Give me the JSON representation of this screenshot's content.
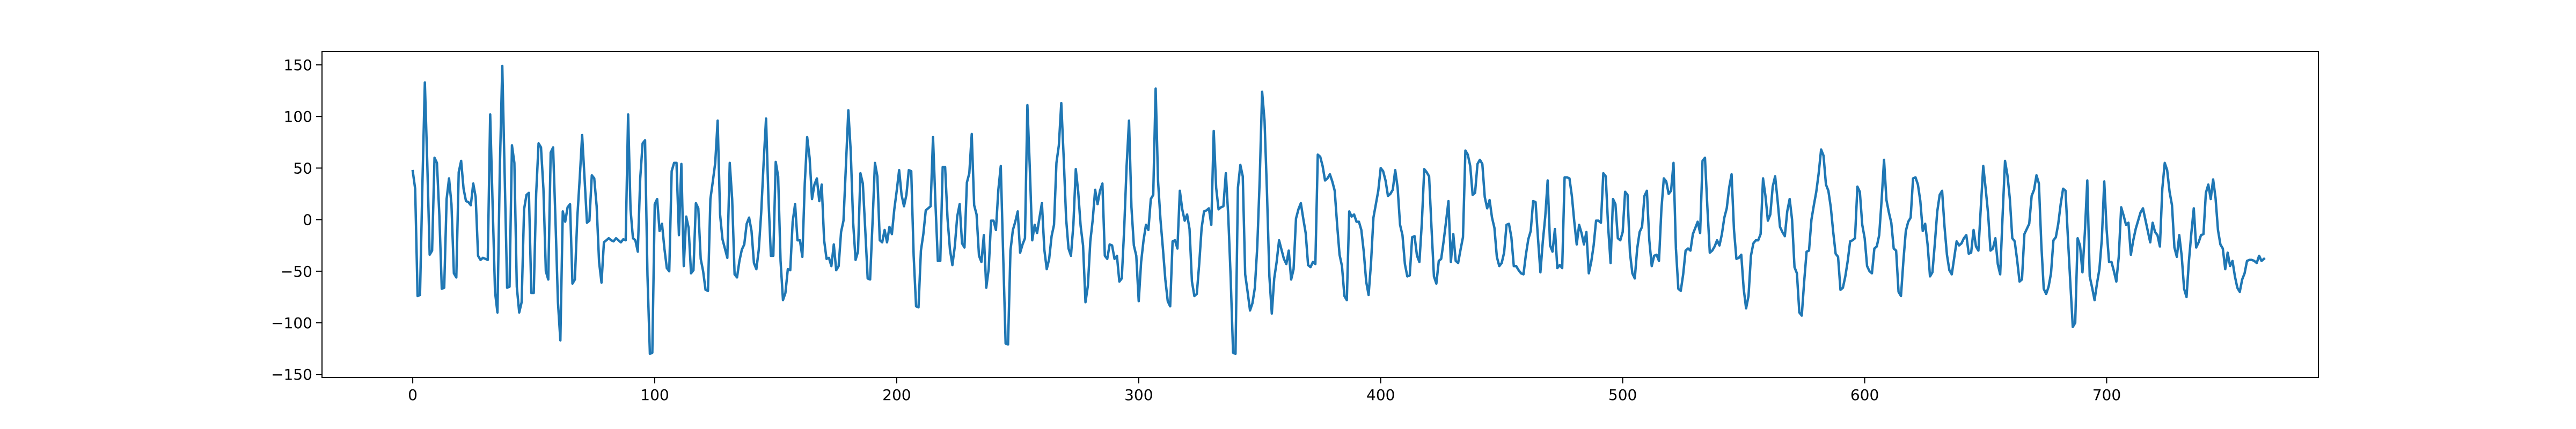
{
  "chart_data": {
    "type": "line",
    "title": "",
    "xlabel": "",
    "ylabel": "",
    "xlim": [
      -37.5,
      787.5
    ],
    "ylim": [
      -153,
      163
    ],
    "grid": false,
    "legend": "none",
    "color": "#1f77b4",
    "x_ticks": [
      0,
      100,
      200,
      300,
      400,
      500,
      600,
      700
    ],
    "x_tick_labels": [
      "0",
      "100",
      "200",
      "300",
      "400",
      "500",
      "600",
      "700"
    ],
    "y_ticks": [
      -150,
      -100,
      -50,
      0,
      50,
      100,
      150
    ],
    "y_tick_labels": [
      "−150",
      "−100",
      "−50",
      "0",
      "50",
      "100",
      "150"
    ],
    "series": [
      {
        "x_start": 0,
        "x_step": 1,
        "values": [
          47,
          30,
          -74,
          -73,
          35,
          133,
          55,
          -34,
          -30,
          60,
          55,
          4,
          -67,
          -66,
          20,
          40,
          15,
          -52,
          -56,
          46,
          57,
          30,
          18,
          17,
          14,
          35,
          22,
          -35,
          -39,
          -37,
          -38,
          -39,
          102,
          15,
          -70,
          -90,
          51,
          149,
          42,
          -66,
          -65,
          72,
          55,
          -65,
          -90,
          -80,
          10,
          24,
          26,
          -71,
          -71,
          25,
          74,
          70,
          30,
          -50,
          -58,
          65,
          70,
          -2,
          -80,
          -117,
          8,
          -2,
          12,
          15,
          -62,
          -58,
          2,
          40,
          82,
          40,
          -3,
          -1,
          43,
          40,
          13,
          -41,
          -61,
          -22,
          -20,
          -18,
          -20,
          -21,
          -18,
          -20,
          -22,
          -19,
          -20,
          102,
          10,
          -18,
          -20,
          -31,
          40,
          74,
          77,
          -54,
          -130,
          -129,
          15,
          20,
          -11,
          -4,
          -28,
          -47,
          -50,
          47,
          55,
          55,
          -15,
          54,
          -45,
          3,
          -8,
          -52,
          -49,
          16,
          11,
          -38,
          -50,
          -68,
          -69,
          20,
          37,
          55,
          96,
          5,
          -19,
          -28,
          -37,
          55,
          20,
          -53,
          -56,
          -40,
          -29,
          -24,
          -4,
          2,
          -11,
          -42,
          -48,
          -29,
          7,
          55,
          98,
          20,
          -35,
          -35,
          56,
          42,
          -40,
          -78,
          -71,
          -48,
          -49,
          -2,
          15,
          -20,
          -20,
          -36,
          35,
          80,
          60,
          20,
          34,
          40,
          18,
          34,
          -20,
          -38,
          -37,
          -45,
          -24,
          -49,
          -45,
          -12,
          -1,
          52,
          106,
          66,
          -3,
          -39,
          -31,
          45,
          35,
          -10,
          -57,
          -58,
          -3,
          55,
          42,
          -20,
          -22,
          -10,
          -22,
          -7,
          -14,
          10,
          28,
          48,
          24,
          13,
          24,
          48,
          47,
          -35,
          -84,
          -85,
          -30,
          -14,
          9,
          11,
          13,
          80,
          16,
          -40,
          -40,
          51,
          51,
          1,
          -29,
          -44,
          -26,
          3,
          15,
          -23,
          -27,
          36,
          45,
          83,
          14,
          5,
          -35,
          -41,
          -15,
          -66,
          -48,
          -1,
          -1,
          -10,
          29,
          52,
          -35,
          -120,
          -121,
          -30,
          -10,
          -2,
          8,
          -32,
          -24,
          -18,
          111,
          50,
          -20,
          -5,
          -13,
          2,
          16,
          -29,
          -48,
          -38,
          -16,
          -5,
          55,
          72,
          113,
          60,
          1,
          -28,
          -35,
          -5,
          49,
          27,
          -6,
          -25,
          -80,
          -64,
          -21,
          0,
          29,
          15,
          28,
          35,
          -35,
          -38,
          -24,
          -25,
          -38,
          -35,
          -60,
          -57,
          -9,
          52,
          96,
          12,
          -25,
          -35,
          -79,
          -41,
          -20,
          -5,
          -10,
          20,
          24,
          127,
          37,
          0,
          -28,
          -58,
          -79,
          -84,
          -21,
          -20,
          -28,
          28,
          10,
          -1,
          5,
          -9,
          -60,
          -74,
          -72,
          -43,
          -8,
          8,
          9,
          11,
          -5,
          86,
          31,
          10,
          12,
          13,
          45,
          4,
          -56,
          -129,
          -130,
          31,
          53,
          42,
          -53,
          -70,
          -88,
          -81,
          -66,
          -26,
          39,
          124,
          96,
          27,
          -55,
          -91,
          -57,
          -41,
          -20,
          -29,
          -38,
          -43,
          -30,
          -58,
          -48,
          1,
          10,
          16,
          1,
          -13,
          -44,
          -46,
          -41,
          -43,
          63,
          61,
          52,
          38,
          40,
          44,
          37,
          28,
          -5,
          -34,
          -45,
          -74,
          -78,
          8,
          3,
          5,
          -2,
          -2,
          -10,
          -31,
          -60,
          -73,
          -42,
          2,
          15,
          28,
          50,
          47,
          38,
          23,
          25,
          29,
          48,
          31,
          -5,
          -15,
          -43,
          -55,
          -54,
          -17,
          -16,
          -35,
          -41,
          -3,
          49,
          46,
          42,
          -8,
          -55,
          -62,
          -40,
          -38,
          -21,
          -2,
          18,
          -41,
          -14,
          -40,
          -42,
          -29,
          -17,
          67,
          63,
          52,
          24,
          26,
          54,
          58,
          54,
          22,
          11,
          19,
          2,
          -8,
          -36,
          -45,
          -42,
          -32,
          -5,
          -4,
          -17,
          -45,
          -45,
          -49,
          -52,
          -53,
          -34,
          -19,
          -11,
          18,
          17,
          -18,
          -51,
          -21,
          3,
          38,
          -25,
          -31,
          -9,
          -47,
          -44,
          -47,
          41,
          41,
          40,
          23,
          -2,
          -24,
          -5,
          -13,
          -24,
          -12,
          -52,
          -41,
          -25,
          -1,
          -1,
          -3,
          45,
          42,
          -7,
          -42,
          20,
          15,
          -18,
          -20,
          -12,
          27,
          24,
          -32,
          -52,
          -57,
          -28,
          -12,
          -7,
          23,
          28,
          -20,
          -45,
          -35,
          -34,
          -40,
          10,
          40,
          37,
          25,
          28,
          55,
          -28,
          -67,
          -69,
          -53,
          -30,
          -28,
          -30,
          -14,
          -8,
          -2,
          -13,
          57,
          60,
          12,
          -32,
          -30,
          -26,
          -20,
          -25,
          -14,
          2,
          11,
          31,
          44,
          -10,
          -38,
          -37,
          -34,
          -67,
          -86,
          -74,
          -35,
          -23,
          -20,
          -20,
          -14,
          40,
          23,
          -1,
          5,
          32,
          42,
          19,
          -7,
          -12,
          -16,
          8,
          20,
          0,
          -46,
          -52,
          -90,
          -93,
          -60,
          -31,
          -30,
          0,
          14,
          27,
          45,
          68,
          62,
          34,
          28,
          12,
          -12,
          -33,
          -36,
          -68,
          -66,
          -55,
          -40,
          -21,
          -20,
          -18,
          32,
          27,
          -5,
          -18,
          -45,
          -50,
          -52,
          -28,
          -26,
          -15,
          19,
          58,
          19,
          7,
          -3,
          -28,
          -30,
          -70,
          -74,
          -40,
          -11,
          -2,
          2,
          40,
          41,
          34,
          18,
          -11,
          -4,
          -24,
          -55,
          -51,
          -23,
          8,
          24,
          28,
          -7,
          -34,
          -49,
          -53,
          -37,
          -21,
          -25,
          -23,
          -18,
          -15,
          -33,
          -32,
          -10,
          -26,
          -30,
          12,
          52,
          30,
          6,
          -30,
          -28,
          -18,
          -43,
          -53,
          4,
          57,
          43,
          20,
          -18,
          -21,
          -39,
          -60,
          -58,
          -14,
          -9,
          -4,
          23,
          29,
          43,
          35,
          -24,
          -67,
          -72,
          -65,
          -52,
          -20,
          -17,
          -4,
          15,
          30,
          28,
          -18,
          -62,
          -104,
          -100,
          -18,
          -25,
          -51,
          -12,
          38,
          -55,
          -66,
          -78,
          -62,
          -48,
          -19,
          37,
          -10,
          -41,
          -41,
          -50,
          -60,
          -36,
          12,
          4,
          -5,
          -3,
          -34,
          -20,
          -9,
          -1,
          7,
          11,
          0,
          -11,
          -22,
          -3,
          -12,
          -15,
          -26,
          30,
          55,
          48,
          27,
          14,
          -27,
          -36,
          -15,
          -35,
          -67,
          -75,
          -40,
          -13,
          11,
          -27,
          -22,
          -15,
          -14,
          26,
          34,
          20,
          39,
          21,
          -10,
          -24,
          -28,
          -48,
          -32,
          -45,
          -40,
          -55,
          -66,
          -70,
          -58,
          -52,
          -40,
          -39,
          -39,
          -40,
          -42,
          -35,
          -40,
          -38
        ]
      }
    ]
  }
}
